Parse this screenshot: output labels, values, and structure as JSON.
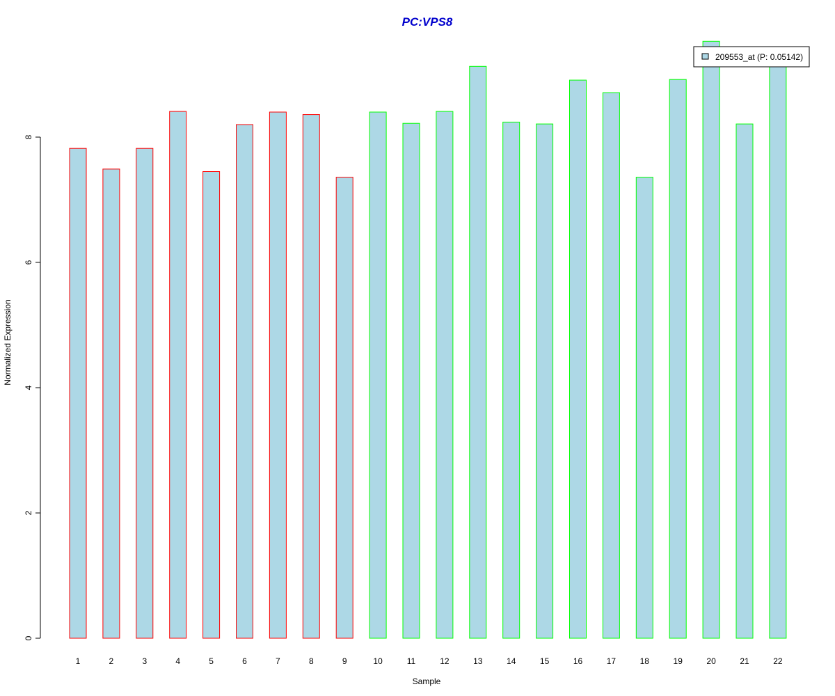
{
  "chart_data": {
    "type": "bar",
    "title": "PC:VPS8",
    "xlabel": "Sample",
    "ylabel": "Normalized Expression",
    "categories": [
      "1",
      "2",
      "3",
      "4",
      "5",
      "6",
      "7",
      "8",
      "9",
      "10",
      "11",
      "12",
      "13",
      "14",
      "15",
      "16",
      "17",
      "18",
      "19",
      "20",
      "21",
      "22"
    ],
    "series": [
      {
        "name": "209553_at (P: 0.05142)",
        "values": [
          7.82,
          7.49,
          7.82,
          8.41,
          7.45,
          8.2,
          8.4,
          8.36,
          7.36,
          8.4,
          8.22,
          8.41,
          9.13,
          8.24,
          8.21,
          8.91,
          8.71,
          7.36,
          8.92,
          9.53,
          8.21,
          9.26
        ]
      }
    ],
    "groups": [
      "red",
      "red",
      "red",
      "red",
      "red",
      "red",
      "red",
      "red",
      "red",
      "green",
      "green",
      "green",
      "green",
      "green",
      "green",
      "green",
      "green",
      "green",
      "green",
      "green",
      "green",
      "green"
    ],
    "y_ticks": [
      "0",
      "2",
      "4",
      "6",
      "8"
    ],
    "ylim": [
      0,
      9.53
    ],
    "legend_position": "top-right",
    "grid": false,
    "colors": {
      "bar_fill": "#add8e6",
      "group_red": "#ff0000",
      "group_green": "#00ff00",
      "title": "#0000cd"
    }
  }
}
